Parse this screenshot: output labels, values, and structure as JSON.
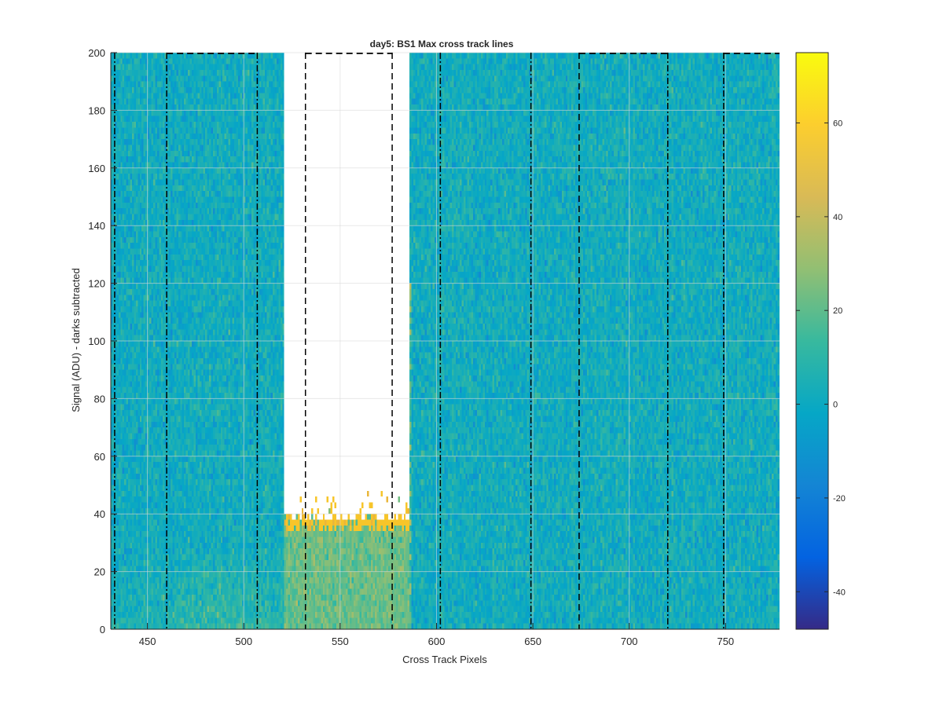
{
  "chart_data": {
    "type": "heatmap",
    "title": "day5: BS1  Max cross track lines",
    "xlabel": "Cross Track Pixels",
    "ylabel": "Signal (ADU) - darks subtracted",
    "xlim": [
      431,
      778
    ],
    "ylim": [
      0,
      200
    ],
    "xticks": [
      450,
      500,
      550,
      600,
      650,
      700,
      750
    ],
    "yticks": [
      0,
      20,
      40,
      60,
      80,
      100,
      120,
      140,
      160,
      180,
      200
    ],
    "grid": true,
    "colormap": "parula",
    "colorbar": {
      "range": [
        -48,
        75
      ],
      "ticks": [
        -40,
        -20,
        0,
        20,
        40,
        60
      ],
      "stops": [
        "#352a87",
        "#0363e1",
        "#1485d4",
        "#06a7c6",
        "#38b99e",
        "#92bf73",
        "#d9ba56",
        "#fcce2e",
        "#f9fb0e"
      ]
    },
    "saturation_region": {
      "x_range": [
        521,
        585
      ],
      "floor_signal": 33,
      "color": "#f7c52a"
    },
    "lower_warm_region": {
      "x_range": [
        430,
        520
      ],
      "y_range": [
        0,
        30
      ]
    },
    "vertical_markers": [
      {
        "x": 433,
        "style": "dash-dot"
      },
      {
        "x": 460,
        "style": "dash-dot"
      },
      {
        "x": 507,
        "style": "dash-dot"
      },
      {
        "x": 532,
        "style": "dashed"
      },
      {
        "x": 577,
        "style": "dashed"
      },
      {
        "x": 602,
        "style": "dash-dot"
      },
      {
        "x": 649,
        "style": "dash-dot"
      },
      {
        "x": 674,
        "style": "dashed"
      },
      {
        "x": 720,
        "style": "dash-dot"
      },
      {
        "x": 749,
        "style": "dash-dot"
      }
    ],
    "top_dashed_segments": [
      [
        460,
        507
      ],
      [
        532,
        577
      ],
      [
        674,
        720
      ],
      [
        749,
        778
      ]
    ]
  }
}
